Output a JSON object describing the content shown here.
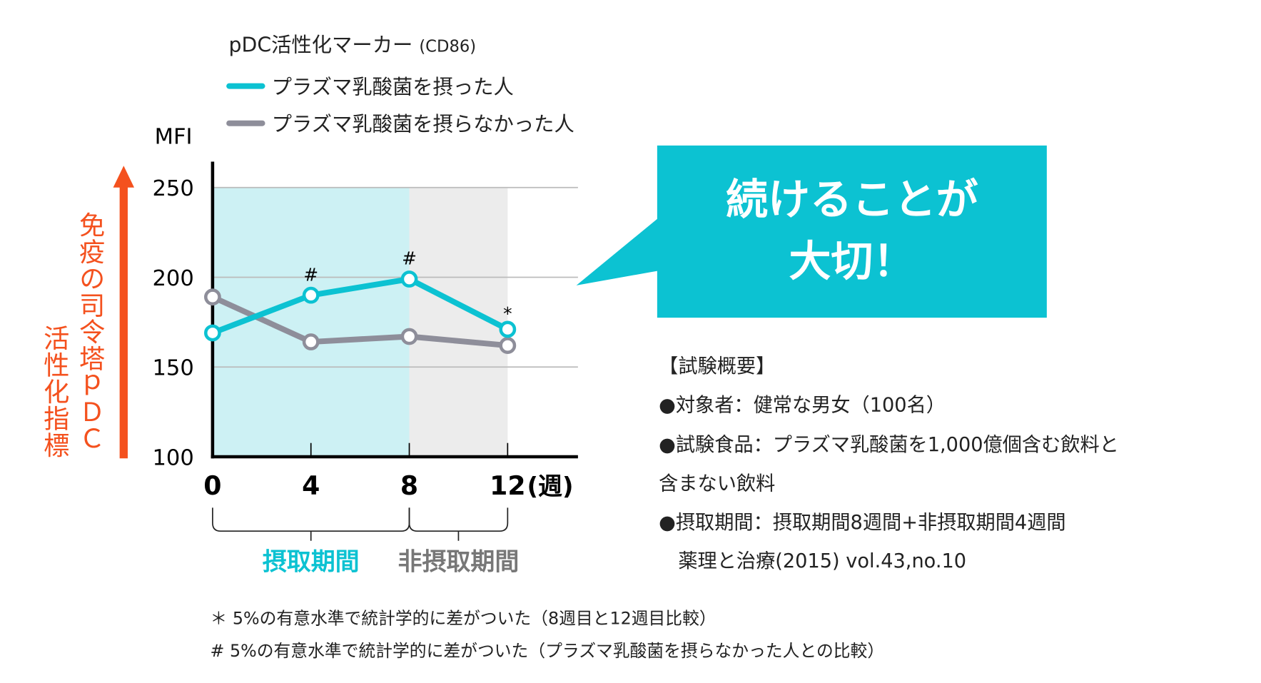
{
  "legend": {
    "title": "pDC活性化マーカー",
    "title_suffix": "(CD86)",
    "items": [
      {
        "label": "プラズマ乳酸菌を摂った人",
        "color": "#0cc2d2"
      },
      {
        "label": "プラズマ乳酸菌を摂らなかった人",
        "color": "#8e8e9a"
      }
    ]
  },
  "axis_side": {
    "line1": "免疫の司令塔ｐＤＣ",
    "line2": "活性化指標",
    "color": "#f4511e"
  },
  "chart_data": {
    "type": "line",
    "ylabel": "MFI",
    "xlabel": "(週)",
    "x": [
      0,
      4,
      8,
      12
    ],
    "x_tick_labels": [
      "0",
      "4",
      "8",
      "12"
    ],
    "ylim": [
      100,
      250
    ],
    "y_ticks": [
      100,
      150,
      200,
      250
    ],
    "grid": true,
    "series": [
      {
        "name": "プラズマ乳酸菌を摂った人",
        "color": "#0cc2d2",
        "values": [
          169,
          190,
          199,
          171
        ],
        "marks": [
          "",
          "#",
          "#",
          "*"
        ]
      },
      {
        "name": "プラズマ乳酸菌を摂らなかった人",
        "color": "#8e8e9a",
        "values": [
          189,
          164,
          167,
          162
        ]
      }
    ],
    "periods": [
      {
        "label": "摂取期間",
        "from": 0,
        "to": 8,
        "fill": "#cdf1f4",
        "text_color": "#0cc2d2"
      },
      {
        "label": "非摂取期間",
        "from": 8,
        "to": 12,
        "fill": "#ececec",
        "text_color": "#777777"
      }
    ]
  },
  "callout": {
    "line1": "続けることが",
    "line2": "大切！"
  },
  "summary": {
    "heading": "【試験概要】",
    "lines": [
      "●対象者：健常な男女（100名）",
      "●試験食品：プラズマ乳酸菌を1,000億個含む飲料と",
      "含まない飲料",
      "●摂取期間：摂取期間8週間+非摂取期間4週間",
      "　薬理と治療(2015) vol.43,no.10"
    ]
  },
  "footnotes": [
    "＊ 5%の有意水準で統計学的に差がついた（8週目と12週目比較）",
    "# 5%の有意水準で統計学的に差がついた（プラズマ乳酸菌を摂らなかった人との比較）"
  ]
}
